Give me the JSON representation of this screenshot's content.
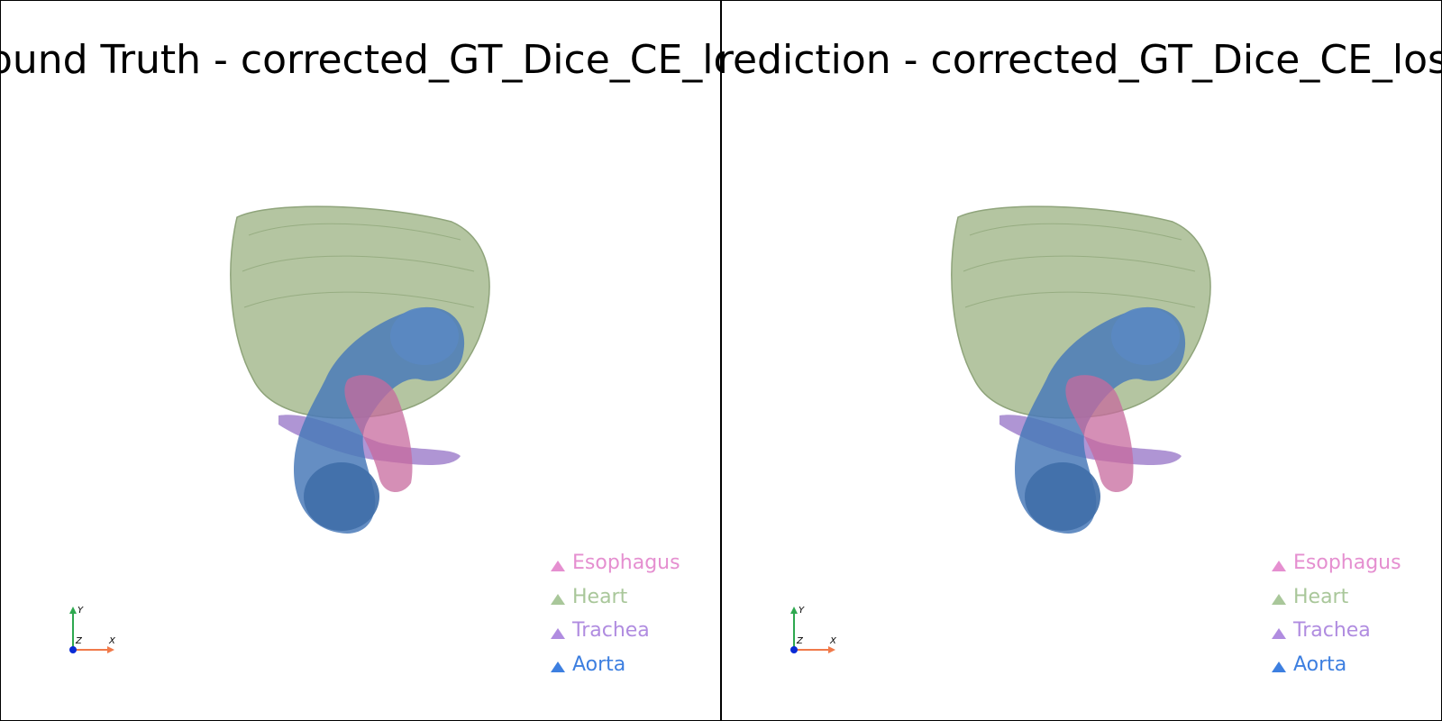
{
  "panels": [
    {
      "title": "Ground Truth - corrected_GT_Dice_CE_loss"
    },
    {
      "title": "Prediction - corrected_GT_Dice_CE_loss"
    }
  ],
  "legend": [
    {
      "label": "Esophagus",
      "color": "#e58fd0"
    },
    {
      "label": "Heart",
      "color": "#a9c79a"
    },
    {
      "label": "Trachea",
      "color": "#b08ce0"
    },
    {
      "label": "Aorta",
      "color": "#3d7fe0"
    }
  ],
  "axes": {
    "x_label": "X",
    "y_label": "Y",
    "z_label": "Z"
  },
  "colors": {
    "heart": "#a7bb91",
    "aorta": "#4a7ab8",
    "esophagus": "#c76a9e",
    "trachea": "#9b7bc9",
    "border": "#000000"
  }
}
